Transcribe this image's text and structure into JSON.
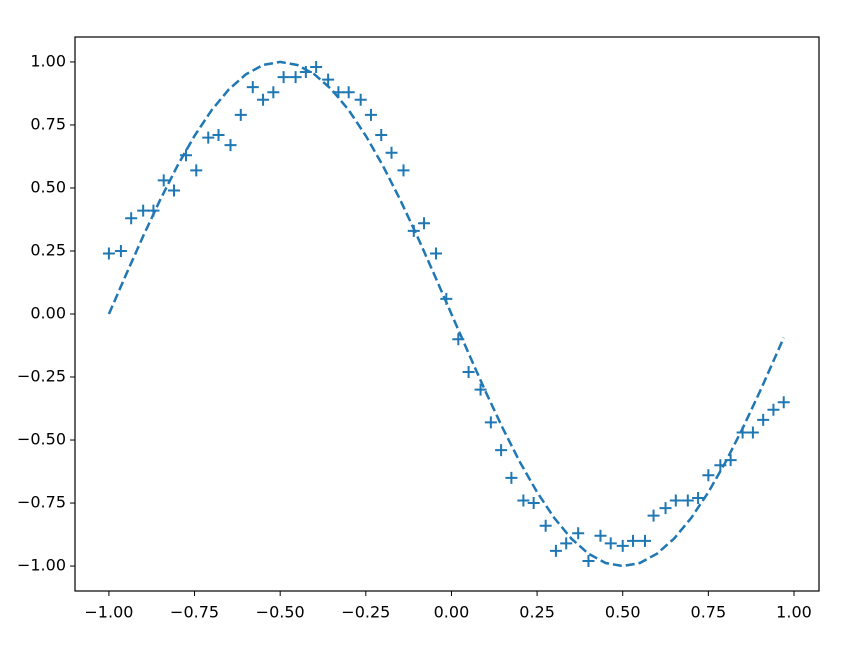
{
  "chart_data": {
    "type": "scatter",
    "xlim": [
      -1.099,
      1.073
    ],
    "ylim": [
      -1.099,
      1.099
    ],
    "xticks": [
      {
        "value": -1,
        "label": "−1.00"
      },
      {
        "value": -0.75,
        "label": "−0.75"
      },
      {
        "value": -0.5,
        "label": "−0.50"
      },
      {
        "value": -0.25,
        "label": "−0.25"
      },
      {
        "value": 0,
        "label": "0.00"
      },
      {
        "value": 0.25,
        "label": "0.25"
      },
      {
        "value": 0.5,
        "label": "0.50"
      },
      {
        "value": 0.75,
        "label": "0.75"
      },
      {
        "value": 1,
        "label": "1.00"
      }
    ],
    "yticks": [
      {
        "value": -1,
        "label": "−1.00"
      },
      {
        "value": -0.75,
        "label": "−0.75"
      },
      {
        "value": -0.5,
        "label": "−0.50"
      },
      {
        "value": -0.25,
        "label": "−0.25"
      },
      {
        "value": 0,
        "label": "0.00"
      },
      {
        "value": 0.25,
        "label": "0.25"
      },
      {
        "value": 0.5,
        "label": "0.50"
      },
      {
        "value": 0.75,
        "label": "0.75"
      },
      {
        "value": 1,
        "label": "1.00"
      }
    ],
    "series": [
      {
        "type": "scatter",
        "marker": "+",
        "color": "#1f77b4",
        "x": [
          -1.0,
          -0.965,
          -0.935,
          -0.9,
          -0.87,
          -0.84,
          -0.81,
          -0.775,
          -0.745,
          -0.71,
          -0.68,
          -0.645,
          -0.615,
          -0.58,
          -0.55,
          -0.52,
          -0.49,
          -0.455,
          -0.425,
          -0.395,
          -0.36,
          -0.33,
          -0.3,
          -0.265,
          -0.235,
          -0.205,
          -0.175,
          -0.14,
          -0.11,
          -0.08,
          -0.045,
          -0.015,
          0.02,
          0.05,
          0.085,
          0.115,
          0.145,
          0.175,
          0.21,
          0.24,
          0.275,
          0.305,
          0.335,
          0.37,
          0.4,
          0.435,
          0.465,
          0.5,
          0.53,
          0.565,
          0.59,
          0.625,
          0.655,
          0.69,
          0.72,
          0.75,
          0.785,
          0.815,
          0.85,
          0.88,
          0.91,
          0.94,
          0.97
        ],
        "values": [
          0.24,
          0.25,
          0.38,
          0.41,
          0.41,
          0.53,
          0.49,
          0.63,
          0.57,
          0.7,
          0.71,
          0.67,
          0.79,
          0.9,
          0.85,
          0.88,
          0.94,
          0.94,
          0.96,
          0.98,
          0.93,
          0.88,
          0.88,
          0.85,
          0.79,
          0.71,
          0.64,
          0.57,
          0.33,
          0.36,
          0.24,
          0.06,
          -0.1,
          -0.23,
          -0.3,
          -0.43,
          -0.54,
          -0.65,
          -0.74,
          -0.75,
          -0.84,
          -0.94,
          -0.91,
          -0.87,
          -0.98,
          -0.88,
          -0.91,
          -0.92,
          -0.9,
          -0.9,
          -0.8,
          -0.77,
          -0.74,
          -0.74,
          -0.73,
          -0.64,
          -0.6,
          -0.58,
          -0.47,
          -0.47,
          -0.42,
          -0.38,
          -0.35
        ]
      },
      {
        "type": "line",
        "linestyle": "dashed",
        "color": "#1f77b4",
        "x": [
          -1.0,
          -0.95,
          -0.9,
          -0.85,
          -0.8,
          -0.75,
          -0.7,
          -0.65,
          -0.6,
          -0.55,
          -0.5,
          -0.45,
          -0.4,
          -0.35,
          -0.3,
          -0.25,
          -0.2,
          -0.15,
          -0.1,
          -0.05,
          0.0,
          0.05,
          0.1,
          0.15,
          0.2,
          0.25,
          0.3,
          0.35,
          0.4,
          0.45,
          0.5,
          0.55,
          0.6,
          0.65,
          0.7,
          0.75,
          0.8,
          0.85,
          0.9,
          0.95,
          0.97
        ],
        "values": [
          0,
          0.156,
          0.309,
          0.454,
          0.588,
          0.707,
          0.809,
          0.891,
          0.951,
          0.988,
          1,
          0.988,
          0.951,
          0.891,
          0.809,
          0.707,
          0.588,
          0.454,
          0.309,
          0.156,
          0,
          -0.156,
          -0.309,
          -0.454,
          -0.588,
          -0.707,
          -0.809,
          -0.891,
          -0.951,
          -0.988,
          -1,
          -0.988,
          -0.951,
          -0.891,
          -0.809,
          -0.707,
          -0.588,
          -0.454,
          -0.309,
          -0.156,
          -0.094
        ]
      }
    ]
  }
}
